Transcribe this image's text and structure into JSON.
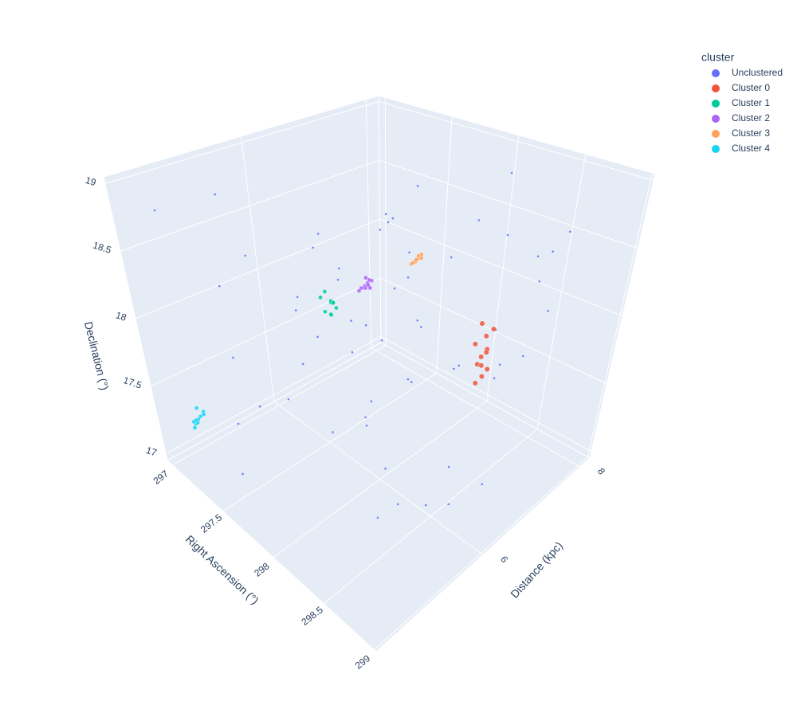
{
  "chart_data": {
    "type": "scatter3d",
    "xlabel": "Right Ascension (°)",
    "ylabel": "Distance (kpc)",
    "zlabel": "Declination (°)",
    "xlim": [
      296.95,
      299.02
    ],
    "ylim": [
      3.8,
      8.2
    ],
    "zlim": [
      16.95,
      19.05
    ],
    "xticks": [
      297,
      297.5,
      298,
      298.5,
      299
    ],
    "yticks": [
      6,
      8
    ],
    "zticks": [
      17,
      17.5,
      18,
      18.5,
      19
    ],
    "grid": true,
    "legend_title": "cluster",
    "legend_position": "top-right",
    "series": [
      {
        "name": "Unclustered",
        "color": "#636efa",
        "x": [
          297.1,
          297.3,
          297.5,
          297.7,
          297.9,
          298.1,
          298.3,
          298.5,
          298.7,
          298.9,
          297.2,
          297.4,
          297.6,
          297.8,
          298.0,
          298.2,
          298.4,
          298.6,
          298.8,
          297.05,
          297.15,
          297.35,
          297.55,
          297.75,
          297.95,
          298.15,
          298.35,
          298.55,
          298.75,
          298.95,
          297.25,
          297.45,
          297.65,
          297.85,
          298.05,
          298.25,
          298.45,
          298.65,
          298.85,
          297.0,
          297.1,
          297.3,
          297.6,
          297.9,
          298.2,
          298.5,
          298.8,
          297.2,
          297.5,
          297.8,
          298.1,
          298.4,
          298.7,
          297.4,
          297.7,
          298.0,
          298.3,
          298.6,
          298.9,
          297.3
        ],
        "y": [
          4.2,
          5.1,
          6.3,
          7.4,
          4.8,
          5.9,
          7.0,
          8.0,
          4.5,
          5.5,
          6.8,
          7.9,
          4.1,
          5.3,
          6.6,
          7.7,
          4.9,
          6.1,
          7.2,
          8.1,
          5.0,
          6.2,
          7.5,
          4.3,
          5.6,
          6.9,
          8.0,
          4.7,
          5.8,
          7.1,
          7.8,
          4.4,
          5.7,
          7.0,
          8.1,
          4.6,
          6.0,
          7.3,
          4.0,
          6.5,
          7.6,
          4.8,
          5.4,
          6.7,
          7.9,
          5.2,
          6.4,
          7.7,
          4.3,
          5.9,
          7.2,
          4.5,
          6.6,
          7.4,
          4.9,
          6.0,
          7.5,
          5.1,
          6.8,
          8.0
        ],
        "z": [
          18.8,
          17.3,
          18.1,
          17.6,
          18.4,
          17.1,
          18.7,
          17.9,
          17.4,
          18.2,
          17.7,
          18.5,
          17.2,
          18.0,
          17.5,
          18.9,
          17.8,
          17.3,
          18.6,
          18.1,
          17.6,
          18.3,
          17.1,
          18.7,
          17.9,
          18.4,
          17.5,
          18.0,
          17.2,
          18.8,
          18.2,
          17.4,
          18.6,
          17.8,
          18.3,
          17.7,
          17.0,
          18.5,
          18.1,
          17.6,
          17.3,
          18.9,
          17.7,
          18.2,
          17.4,
          18.6,
          17.9,
          17.2,
          18.4,
          18.0,
          17.5,
          18.8,
          17.1,
          18.3,
          17.6,
          18.7,
          17.8,
          17.3,
          18.5,
          17.9
        ]
      },
      {
        "name": "Cluster 0",
        "color": "#ef553b",
        "x": [
          298.17,
          298.2,
          298.22,
          298.18,
          298.19,
          298.21,
          298.16,
          298.2,
          298.23,
          298.18,
          298.19,
          298.21
        ],
        "y": [
          7.5,
          7.55,
          7.6,
          7.48,
          7.52,
          7.58,
          7.45,
          7.56,
          7.62,
          7.5,
          7.54,
          7.57
        ],
        "z": [
          17.35,
          17.4,
          17.45,
          17.5,
          17.55,
          17.6,
          17.65,
          17.7,
          17.75,
          17.8,
          17.48,
          17.58
        ]
      },
      {
        "name": "Cluster 1",
        "color": "#00cc96",
        "x": [
          297.55,
          297.58,
          297.6,
          297.54,
          297.57,
          297.59,
          297.56,
          297.61,
          297.53,
          297.58
        ],
        "y": [
          5.95,
          6.0,
          6.05,
          5.9,
          6.02,
          5.98,
          6.08,
          5.93,
          6.0,
          6.04
        ],
        "z": [
          17.95,
          18.02,
          17.98,
          18.06,
          17.92,
          18.04,
          18.0,
          17.96,
          18.08,
          18.01
        ]
      },
      {
        "name": "Cluster 2",
        "color": "#ab63fa",
        "x": [
          297.65,
          297.68,
          297.67,
          297.7,
          297.64,
          297.69,
          297.66,
          297.68,
          297.67,
          297.71
        ],
        "y": [
          6.4,
          6.45,
          6.42,
          6.48,
          6.38,
          6.44,
          6.46,
          6.41,
          6.5,
          6.43
        ],
        "z": [
          18.08,
          18.12,
          18.1,
          18.14,
          18.06,
          18.11,
          18.15,
          18.09,
          18.13,
          18.1
        ]
      },
      {
        "name": "Cluster 3",
        "color": "#ffa15a",
        "x": [
          297.76,
          297.79,
          297.78,
          297.8,
          297.77,
          297.81,
          297.78,
          297.79
        ],
        "y": [
          7.05,
          7.1,
          7.08,
          7.14,
          7.06,
          7.12,
          7.09,
          7.11
        ],
        "z": [
          18.18,
          18.22,
          18.2,
          18.25,
          18.19,
          18.23,
          18.21,
          18.24
        ]
      },
      {
        "name": "Cluster 4",
        "color": "#19d3f3",
        "x": [
          297.24,
          297.27,
          297.25,
          297.28,
          297.26,
          297.23,
          297.29,
          297.26,
          297.25,
          297.27
        ],
        "y": [
          4.0,
          4.05,
          3.95,
          4.1,
          4.02,
          3.98,
          4.08,
          4.0,
          4.04,
          3.96
        ],
        "z": [
          17.36,
          17.42,
          17.39,
          17.45,
          17.4,
          17.33,
          17.44,
          17.38,
          17.47,
          17.41
        ]
      }
    ]
  }
}
